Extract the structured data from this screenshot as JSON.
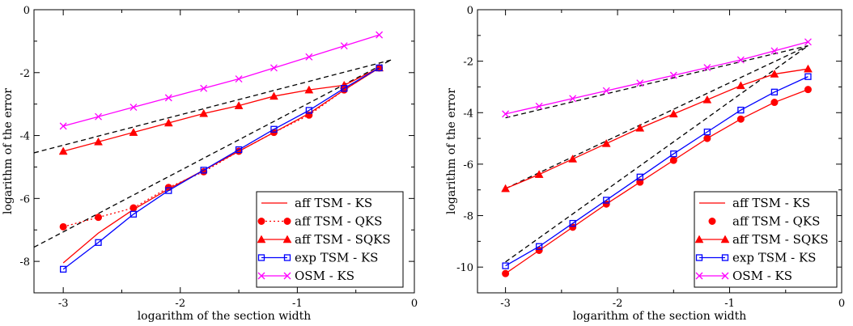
{
  "chart_data": [
    {
      "type": "line",
      "xlabel": "logarithm of the section width",
      "ylabel": "logarithm of the error",
      "xlim": [
        -3.25,
        0
      ],
      "ylim": [
        -9,
        0
      ],
      "x_ticks": [
        -3,
        -2,
        -1,
        0
      ],
      "x_tick_labels": [
        "-3",
        "-2",
        "-1",
        "0"
      ],
      "y_ticks": [
        0,
        -2,
        -4,
        -6,
        -8
      ],
      "y_tick_labels": [
        "0",
        "-2",
        "-4",
        "-6",
        "-8"
      ],
      "grid": false,
      "legend_position": "bottom-right",
      "series": [
        {
          "name": "aff TSM - KS",
          "color": "#ff0000",
          "style": "line",
          "x": [
            -3,
            -2.7,
            -2.4,
            -2.1,
            -1.8,
            -1.5,
            -1.2,
            -0.9,
            -0.6,
            -0.3
          ],
          "y": [
            -8.05,
            -7.1,
            -6.35,
            -5.7,
            -5.1,
            -4.5,
            -3.9,
            -3.3,
            -2.55,
            -1.85
          ]
        },
        {
          "name": "aff TSM - QKS",
          "color": "#ff0000",
          "style": "dotted-circles",
          "x": [
            -3,
            -2.7,
            -2.4,
            -2.1,
            -1.8,
            -1.5,
            -1.2,
            -0.9,
            -0.6,
            -0.3
          ],
          "y": [
            -6.9,
            -6.6,
            -6.3,
            -5.65,
            -5.15,
            -4.5,
            -3.9,
            -3.35,
            -2.55,
            -1.85
          ]
        },
        {
          "name": "aff TSM - SQKS",
          "color": "#ff0000",
          "style": "line-triangles",
          "x": [
            -3,
            -2.7,
            -2.4,
            -2.1,
            -1.8,
            -1.5,
            -1.2,
            -0.9,
            -0.6,
            -0.3
          ],
          "y": [
            -4.5,
            -4.2,
            -3.9,
            -3.6,
            -3.3,
            -3.05,
            -2.75,
            -2.55,
            -2.4,
            -1.85
          ]
        },
        {
          "name": "exp TSM - KS",
          "color": "#0000ff",
          "style": "line-squares",
          "x": [
            -3,
            -2.7,
            -2.4,
            -2.1,
            -1.8,
            -1.5,
            -1.2,
            -0.9,
            -0.6,
            -0.3
          ],
          "y": [
            -8.25,
            -7.4,
            -6.5,
            -5.75,
            -5.1,
            -4.45,
            -3.8,
            -3.2,
            -2.5,
            -1.85
          ]
        },
        {
          "name": "OSM - KS",
          "color": "#ff00ff",
          "style": "line-crosses",
          "x": [
            -3,
            -2.7,
            -2.4,
            -2.1,
            -1.8,
            -1.5,
            -1.2,
            -0.9,
            -0.6,
            -0.3
          ],
          "y": [
            -3.7,
            -3.4,
            -3.1,
            -2.8,
            -2.5,
            -2.2,
            -1.85,
            -1.5,
            -1.15,
            -0.8
          ]
        }
      ],
      "reference_lines": [
        {
          "style": "dashed",
          "color": "#000000",
          "x": [
            -3.25,
            -0.2
          ],
          "y": [
            -4.55,
            -1.6
          ]
        },
        {
          "style": "dashed",
          "color": "#000000",
          "x": [
            -3.25,
            -0.2
          ],
          "y": [
            -7.55,
            -1.6
          ]
        }
      ]
    },
    {
      "type": "line",
      "xlabel": "logarithm of the section width",
      "ylabel": "logarithm of the error",
      "xlim": [
        -3.25,
        0
      ],
      "ylim": [
        -11,
        0
      ],
      "x_ticks": [
        -3,
        -2,
        -1,
        0
      ],
      "x_tick_labels": [
        "-3",
        "-2",
        "-1",
        "0"
      ],
      "y_ticks": [
        0,
        -2,
        -4,
        -6,
        -8,
        -10
      ],
      "y_tick_labels": [
        "0",
        "-2",
        "-4",
        "-6",
        "-8",
        "-10"
      ],
      "grid": false,
      "legend_position": "bottom-right",
      "series": [
        {
          "name": "aff TSM - KS",
          "color": "#ff0000",
          "style": "line",
          "x": [
            -3,
            -2.7,
            -2.4,
            -2.1,
            -1.8,
            -1.5,
            -1.2,
            -0.9,
            -0.6,
            -0.3
          ],
          "y": [
            -10.25,
            -9.35,
            -8.45,
            -7.55,
            -6.7,
            -5.85,
            -5.0,
            -4.25,
            -3.6,
            -3.1
          ]
        },
        {
          "name": "aff TSM - QKS",
          "color": "#ff0000",
          "style": "circles",
          "x": [
            -3,
            -2.7,
            -2.4,
            -2.1,
            -1.8,
            -1.5,
            -1.2,
            -0.9,
            -0.6,
            -0.3
          ],
          "y": [
            -10.25,
            -9.35,
            -8.45,
            -7.55,
            -6.7,
            -5.85,
            -5.0,
            -4.25,
            -3.6,
            -3.1
          ]
        },
        {
          "name": "aff TSM - SQKS",
          "color": "#ff0000",
          "style": "line-triangles",
          "x": [
            -3,
            -2.7,
            -2.4,
            -2.1,
            -1.8,
            -1.5,
            -1.2,
            -0.9,
            -0.6,
            -0.3
          ],
          "y": [
            -6.95,
            -6.4,
            -5.8,
            -5.2,
            -4.6,
            -4.05,
            -3.5,
            -2.95,
            -2.5,
            -2.3
          ]
        },
        {
          "name": "exp TSM - KS",
          "color": "#0000ff",
          "style": "line-squares",
          "x": [
            -3,
            -2.7,
            -2.4,
            -2.1,
            -1.8,
            -1.5,
            -1.2,
            -0.9,
            -0.6,
            -0.3
          ],
          "y": [
            -9.95,
            -9.2,
            -8.3,
            -7.4,
            -6.5,
            -5.6,
            -4.75,
            -3.9,
            -3.2,
            -2.6
          ]
        },
        {
          "name": "OSM - KS",
          "color": "#ff00ff",
          "style": "line-crosses",
          "x": [
            -3,
            -2.7,
            -2.4,
            -2.1,
            -1.8,
            -1.5,
            -1.2,
            -0.9,
            -0.6,
            -0.3
          ],
          "y": [
            -4.05,
            -3.75,
            -3.45,
            -3.15,
            -2.85,
            -2.55,
            -2.25,
            -1.95,
            -1.6,
            -1.25
          ]
        }
      ],
      "reference_lines": [
        {
          "style": "dashed",
          "color": "#000000",
          "x": [
            -3,
            -0.3
          ],
          "y": [
            -4.2,
            -1.4
          ]
        },
        {
          "style": "dashed",
          "color": "#000000",
          "x": [
            -3,
            -0.3
          ],
          "y": [
            -6.95,
            -1.4
          ]
        },
        {
          "style": "dashed",
          "color": "#000000",
          "x": [
            -3,
            -0.3
          ],
          "y": [
            -9.8,
            -1.4
          ]
        }
      ]
    }
  ]
}
